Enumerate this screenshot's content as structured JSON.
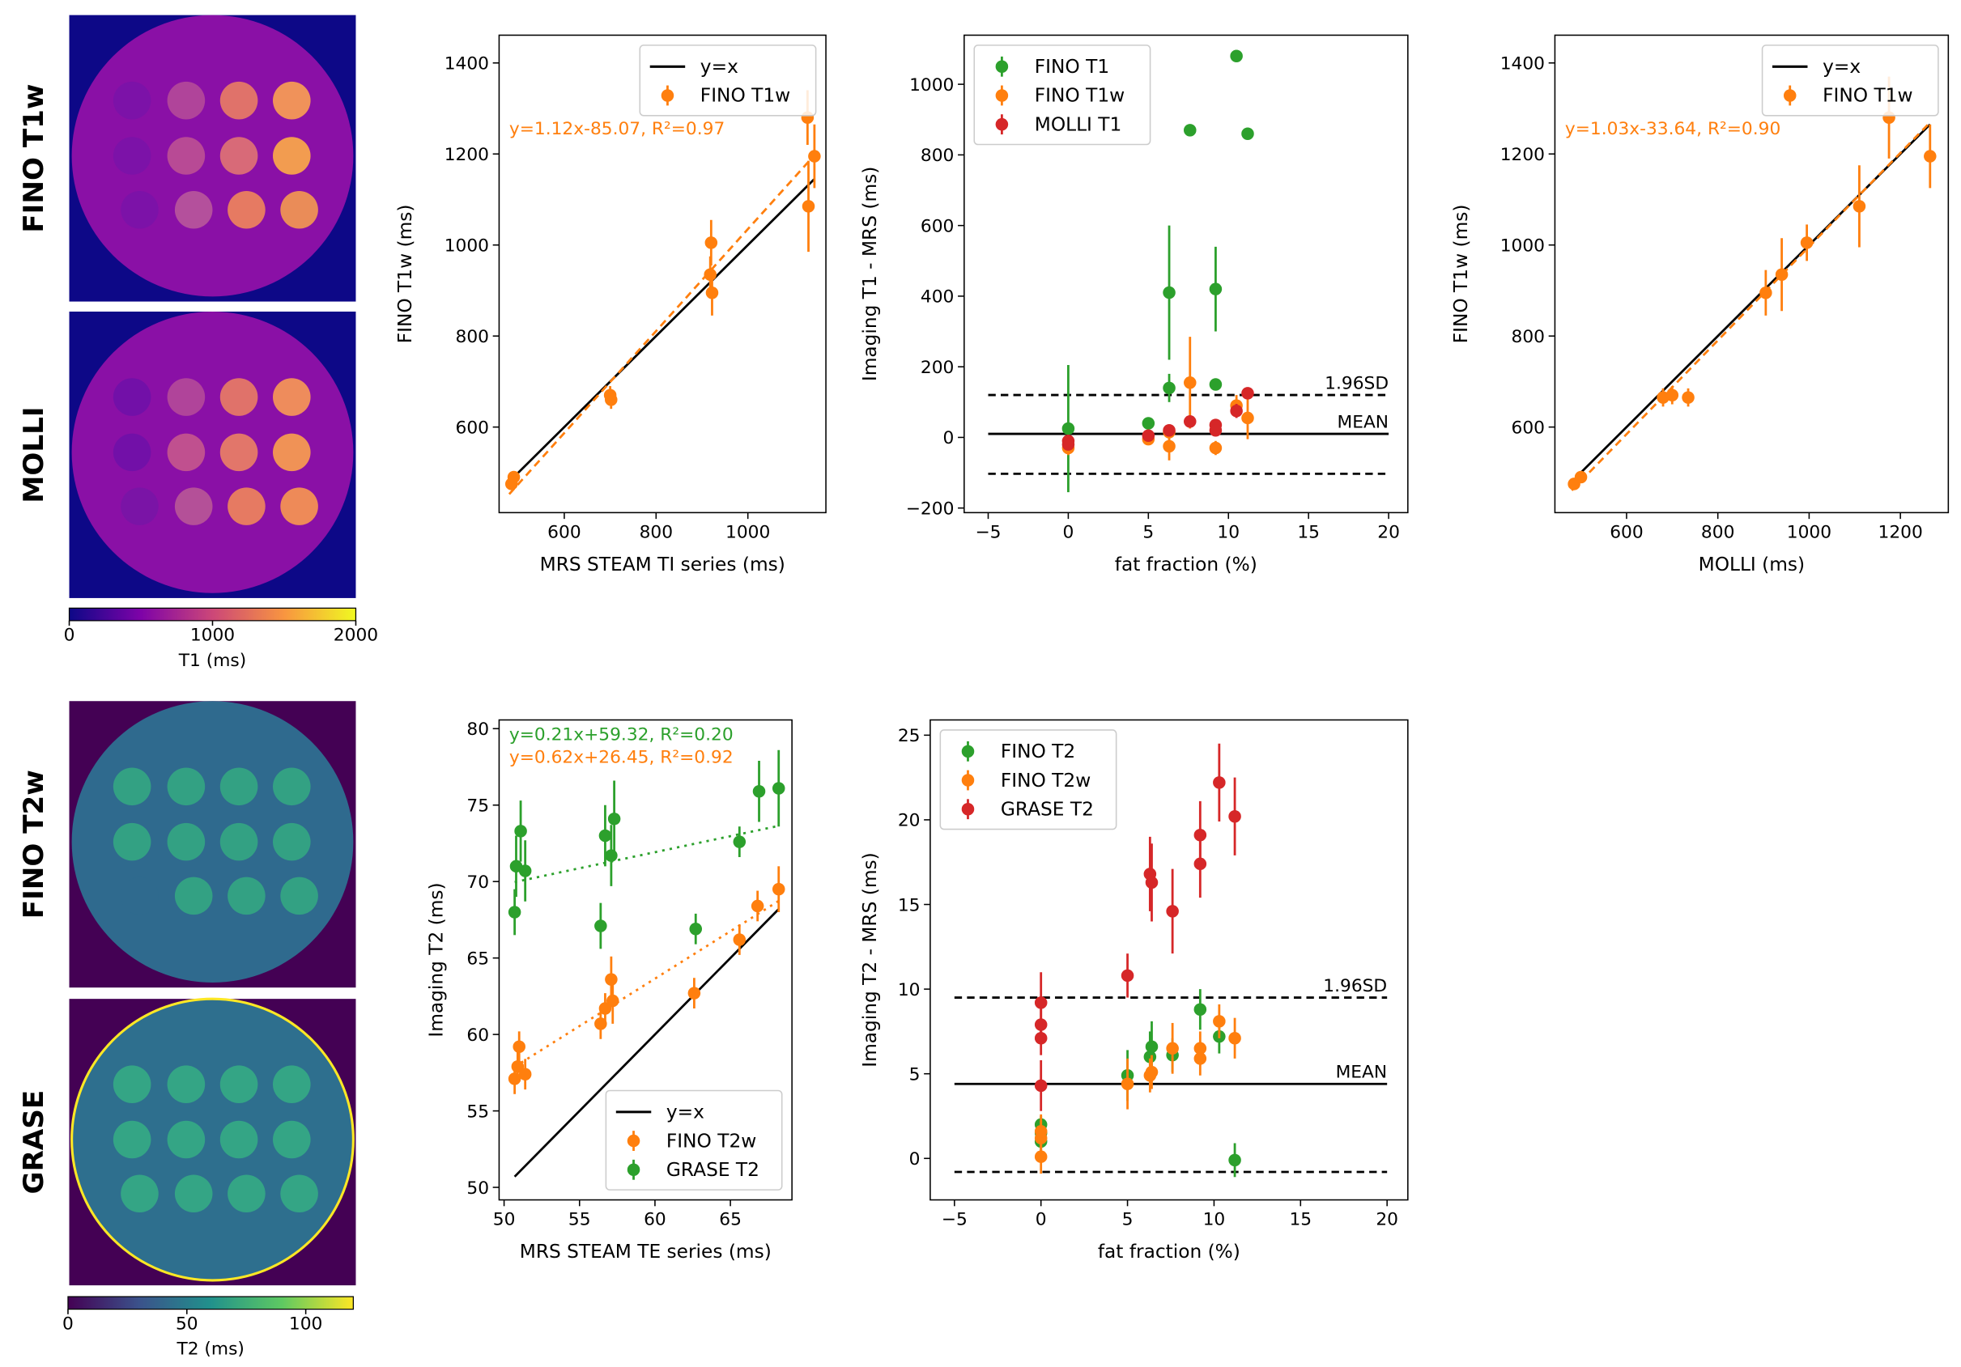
{
  "images": [
    {
      "label": "FINO T1w"
    },
    {
      "label": "MOLLI"
    },
    {
      "label": "FINO T2w"
    },
    {
      "label": "GRASE"
    }
  ],
  "chart_data": [
    {
      "type": "colorbar",
      "colormap": "plasma",
      "xlim": [
        0,
        2000
      ],
      "xticks": [
        0,
        1000,
        2000
      ],
      "xlabel": "T1 (ms)"
    },
    {
      "type": "colorbar",
      "colormap": "viridis",
      "xlim": [
        0,
        120
      ],
      "xticks": [
        0,
        50,
        100
      ],
      "xlabel": "T2 (ms)"
    },
    {
      "type": "scatter",
      "xlabel": "MRS STEAM TI series (ms)",
      "ylabel": "FINO T1w (ms)",
      "xlim": [
        458,
        1170
      ],
      "ylim": [
        412,
        1461
      ],
      "xticks": [
        600,
        800,
        1000
      ],
      "yticks": [
        600,
        800,
        1000,
        1200,
        1400
      ],
      "legend": "upper right",
      "annotations": [
        {
          "text": "y=1.12x-85.07, R²=0.97",
          "color": "#ff7f0e"
        }
      ],
      "series": [
        {
          "type": "line",
          "name": "y=x",
          "color": "#000000",
          "style": "solid",
          "x": [
            485,
            1145
          ],
          "values": [
            485,
            1145
          ]
        },
        {
          "type": "line",
          "color": "#ff7f0e",
          "style": "dashed",
          "x": [
            480,
            1150
          ],
          "values": [
            452.53,
            1202.93
          ]
        },
        {
          "type": "errorbar",
          "name": "FINO T1w",
          "color": "#ff7f0e",
          "x": [
            485,
            490,
            700,
            702,
            918,
            920,
            922,
            1130,
            1132,
            1145
          ],
          "values": [
            475,
            490,
            670,
            660,
            935,
            1005,
            895,
            1280,
            1085,
            1195
          ],
          "errors": [
            10,
            10,
            20,
            20,
            40,
            50,
            50,
            60,
            100,
            70
          ]
        }
      ]
    },
    {
      "type": "scatter",
      "xlabel": "fat fraction (%)",
      "ylabel": "Imaging T1 - MRS (ms)",
      "xlim": [
        -6.5,
        21.2
      ],
      "ylim": [
        -213,
        1139
      ],
      "xticks": [
        {
          "value": -5,
          "label": "−5"
        },
        0,
        5,
        10,
        15,
        20
      ],
      "yticks": [
        {
          "value": -200,
          "label": "−200"
        },
        0,
        200,
        400,
        600,
        800,
        1000
      ],
      "legend": "upper left",
      "hline_x": [
        -5,
        20
      ],
      "hlines": [
        {
          "value": 10,
          "style": "solid",
          "label": "MEAN"
        },
        {
          "value": 120,
          "style": "dashed",
          "label": "1.96SD"
        },
        {
          "value": -103,
          "style": "dashed"
        }
      ],
      "series": [
        {
          "type": "errorbar",
          "name": "FINO T1",
          "color": "#2ca02c",
          "x": [
            0,
            5,
            6.3,
            6.3,
            7.6,
            9.2,
            9.2,
            10.5,
            11.2
          ],
          "values": [
            25,
            40,
            410,
            140,
            870,
            420,
            150,
            1080,
            860
          ],
          "errors": [
            180,
            0,
            190,
            40,
            0,
            120,
            0,
            0,
            0
          ]
        },
        {
          "type": "errorbar",
          "name": "FINO T1w",
          "color": "#ff7f0e",
          "x": [
            0,
            5,
            6.3,
            6.3,
            7.6,
            9.2,
            10.5,
            11.2
          ],
          "values": [
            -30,
            -5,
            -25,
            15,
            155,
            -30,
            90,
            55
          ],
          "errors": [
            20,
            10,
            40,
            20,
            130,
            20,
            30,
            60
          ]
        },
        {
          "type": "errorbar",
          "name": "MOLLI T1",
          "color": "#d62728",
          "x": [
            0,
            0,
            5,
            6.3,
            7.6,
            9.2,
            9.2,
            10.5,
            11.2
          ],
          "values": [
            -10,
            -20,
            5,
            20,
            45,
            35,
            20,
            75,
            125
          ],
          "errors": [
            10,
            10,
            10,
            10,
            10,
            10,
            10,
            20,
            10
          ]
        }
      ]
    },
    {
      "type": "scatter",
      "xlabel": "MOLLI (ms)",
      "ylabel": "FINO T1w (ms)",
      "xlim": [
        443,
        1305
      ],
      "ylim": [
        412,
        1461
      ],
      "xticks": [
        600,
        800,
        1000,
        1200
      ],
      "yticks": [
        600,
        800,
        1000,
        1200,
        1400
      ],
      "legend": "upper right",
      "annotations": [
        {
          "text": "y=1.03x-33.64, R²=0.90",
          "color": "#ff7f0e"
        }
      ],
      "series": [
        {
          "type": "line",
          "name": "y=x",
          "color": "#000000",
          "style": "solid",
          "x": [
            500,
            1265
          ],
          "values": [
            500,
            1265
          ]
        },
        {
          "type": "line",
          "color": "#ff7f0e",
          "style": "dashed",
          "x": [
            480,
            1265
          ],
          "values": [
            460.76,
            1269.31
          ]
        },
        {
          "type": "errorbar",
          "name": "FINO T1w",
          "color": "#ff7f0e",
          "x": [
            485,
            500,
            680,
            700,
            735,
            905,
            940,
            995,
            1110,
            1175,
            1265
          ],
          "values": [
            475,
            490,
            665,
            670,
            665,
            895,
            935,
            1005,
            1085,
            1280,
            1195
          ],
          "errors": [
            10,
            10,
            20,
            20,
            20,
            50,
            80,
            40,
            90,
            90,
            70
          ]
        }
      ]
    },
    {
      "type": "scatter",
      "xlabel": "MRS STEAM TE series (ms)",
      "ylabel": "Imaging T2 (ms)",
      "xlim": [
        49.67,
        69.08
      ],
      "ylim": [
        49.18,
        80.57
      ],
      "xticks": [
        50,
        55,
        60,
        65
      ],
      "yticks": [
        50,
        55,
        60,
        65,
        70,
        75,
        80
      ],
      "legend": "lower right",
      "annotations": [
        {
          "text": "y=0.21x+59.32, R²=0.20",
          "color": "#2ca02c"
        },
        {
          "text": "y=0.62x+26.45, R²=0.92",
          "color": "#ff7f0e"
        }
      ],
      "series": [
        {
          "type": "line",
          "name": "y=x",
          "color": "#000000",
          "style": "solid",
          "x": [
            50.7,
            68.2
          ],
          "values": [
            50.7,
            68.2
          ]
        },
        {
          "type": "errorbar",
          "name": "FINO T2w",
          "color": "#ff7f0e",
          "x": [
            50.7,
            50.9,
            51.0,
            51.4,
            56.4,
            56.7,
            57.1,
            57.2,
            62.6,
            65.6,
            66.8,
            68.2
          ],
          "values": [
            57.1,
            57.9,
            59.2,
            57.4,
            60.7,
            61.7,
            63.6,
            62.2,
            62.7,
            66.2,
            68.4,
            69.5
          ],
          "errors": [
            1,
            1,
            1,
            1,
            1,
            1,
            1.5,
            1.5,
            1,
            1,
            1,
            1.5
          ]
        },
        {
          "type": "errorbar",
          "name": "GRASE T2",
          "color": "#2ca02c",
          "x": [
            50.7,
            50.8,
            51.1,
            51.4,
            56.4,
            56.7,
            57.1,
            57.3,
            62.7,
            65.6,
            66.9,
            68.2
          ],
          "values": [
            68,
            71,
            73.3,
            70.7,
            67.1,
            73,
            71.7,
            74.1,
            66.9,
            72.6,
            75.9,
            76.1
          ],
          "errors": [
            1.5,
            2,
            2,
            2,
            1.5,
            2,
            2,
            2.5,
            1,
            1,
            2,
            2.5
          ]
        },
        {
          "type": "line",
          "color": "#2ca02c",
          "style": "dotted",
          "x": [
            50.7,
            68.2
          ],
          "values": [
            69.967,
            73.642
          ]
        },
        {
          "type": "line",
          "color": "#ff7f0e",
          "style": "dotted",
          "x": [
            50.7,
            68.2
          ],
          "values": [
            57.884,
            68.734
          ]
        }
      ]
    },
    {
      "type": "scatter",
      "xlabel": "fat fraction (%)",
      "ylabel": "Imaging T2 - MRS (ms)",
      "xlim": [
        -6.4,
        21.2
      ],
      "ylim": [
        -2.45,
        25.9
      ],
      "xticks": [
        {
          "value": -5,
          "label": "−5"
        },
        0,
        5,
        10,
        15,
        20
      ],
      "yticks": [
        0,
        5,
        10,
        15,
        20,
        25
      ],
      "legend": "upper left",
      "hline_x": [
        -5,
        20
      ],
      "hlines": [
        {
          "value": 4.4,
          "style": "solid",
          "label": "MEAN"
        },
        {
          "value": 9.5,
          "style": "dashed",
          "label": "1.96SD"
        },
        {
          "value": -0.8,
          "style": "dashed"
        }
      ],
      "series": [
        {
          "type": "errorbar",
          "name": "FINO T2",
          "color": "#2ca02c",
          "x": [
            0,
            0,
            0,
            5,
            6.3,
            6.4,
            7.6,
            9.2,
            10.3,
            11.2
          ],
          "values": [
            2,
            1.5,
            1,
            4.9,
            6,
            6.6,
            6.1,
            8.8,
            7.2,
            -0.1
          ],
          "errors": [
            0.5,
            0.5,
            1,
            1.5,
            1.5,
            1.5,
            1,
            1.2,
            1,
            1
          ]
        },
        {
          "type": "errorbar",
          "name": "FINO T2w",
          "color": "#ff7f0e",
          "x": [
            0,
            0,
            0,
            5,
            6.3,
            6.4,
            7.6,
            9.2,
            9.2,
            10.3,
            11.2
          ],
          "values": [
            0.1,
            1.2,
            1.6,
            4.4,
            4.9,
            5.1,
            6.5,
            5.9,
            6.5,
            8.1,
            7.1
          ],
          "errors": [
            1,
            1,
            1,
            1.5,
            1,
            1,
            1.5,
            1,
            1,
            1,
            1.2
          ]
        },
        {
          "type": "errorbar",
          "name": "GRASE T2",
          "color": "#d62728",
          "x": [
            0,
            0,
            0,
            0,
            5,
            6.3,
            6.4,
            7.6,
            9.2,
            9.2,
            10.3,
            11.2
          ],
          "values": [
            4.3,
            7.1,
            7.9,
            9.2,
            10.8,
            16.8,
            16.3,
            14.6,
            17.4,
            19.1,
            22.2,
            20.2
          ],
          "errors": [
            1.5,
            1,
            1,
            1.8,
            1.3,
            2.2,
            2.3,
            2.5,
            2,
            2,
            2.3,
            2.3
          ]
        }
      ]
    }
  ]
}
